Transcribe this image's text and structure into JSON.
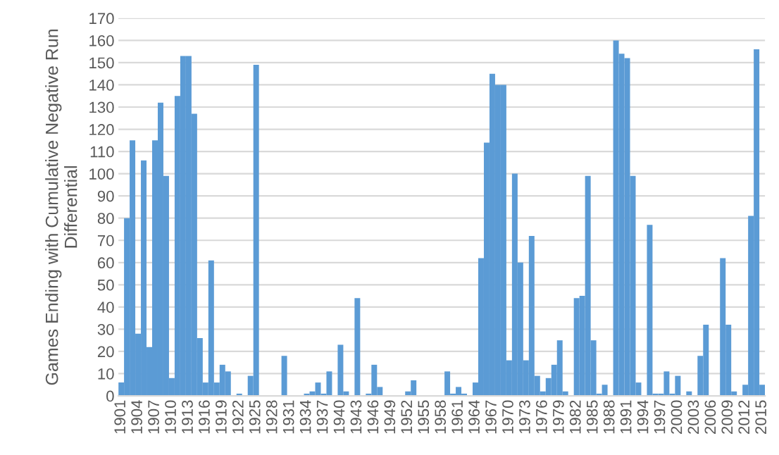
{
  "chart_data": {
    "type": "bar",
    "ylabel": "Games Ending with Cumulative Negative Run Differential",
    "categories": [
      "1901",
      null,
      null,
      "1904",
      null,
      null,
      "1907",
      null,
      null,
      "1910",
      null,
      null,
      "1913",
      null,
      null,
      "1916",
      null,
      null,
      "1919",
      null,
      null,
      "1922",
      null,
      null,
      "1925",
      null,
      null,
      "1928",
      null,
      null,
      "1931",
      null,
      null,
      "1934",
      null,
      null,
      "1937",
      null,
      null,
      "1940",
      null,
      null,
      "1943",
      null,
      null,
      "1946",
      null,
      null,
      "1949",
      null,
      null,
      "1952",
      null,
      null,
      "1955",
      null,
      null,
      "1958",
      null,
      null,
      "1961",
      null,
      null,
      "1964",
      null,
      null,
      "1967",
      null,
      null,
      "1970",
      null,
      null,
      "1973",
      null,
      null,
      "1976",
      null,
      null,
      "1979",
      null,
      null,
      "1982",
      null,
      null,
      "1985",
      null,
      null,
      "1988",
      null,
      null,
      "1991",
      null,
      null,
      "1994",
      null,
      null,
      "1997",
      null,
      null,
      "2000",
      null,
      null,
      "2003",
      null,
      null,
      "2006",
      null,
      null,
      "2009",
      null,
      null,
      "2012",
      null,
      null,
      "2015"
    ],
    "values": [
      6,
      80,
      115,
      28,
      106,
      22,
      115,
      132,
      99,
      8,
      135,
      153,
      153,
      127,
      26,
      6,
      61,
      6,
      14,
      11,
      0,
      1,
      0,
      9,
      149,
      0,
      0,
      0,
      0,
      18,
      0,
      0,
      0,
      1,
      2,
      6,
      1,
      11,
      0,
      23,
      2,
      0,
      44,
      0,
      1,
      14,
      4,
      0,
      0,
      0,
      0,
      2,
      7,
      0,
      0,
      0,
      0,
      0,
      11,
      1,
      4,
      1,
      0,
      6,
      62,
      114,
      145,
      140,
      140,
      16,
      100,
      60,
      16,
      72,
      9,
      2,
      8,
      14,
      25,
      2,
      0,
      44,
      45,
      99,
      25,
      1,
      5,
      0,
      160,
      154,
      152,
      99,
      6,
      0,
      77,
      1,
      1,
      11,
      1,
      9,
      0,
      2,
      0,
      18,
      32,
      0,
      0,
      62,
      32,
      2,
      0,
      5,
      81,
      156,
      5
    ],
    "color": "#5b9bd5",
    "ylim": [
      0,
      170
    ],
    "yticks": [
      0,
      10,
      20,
      30,
      40,
      50,
      60,
      70,
      80,
      90,
      100,
      110,
      120,
      130,
      140,
      150,
      160,
      170
    ],
    "grid": "y",
    "legend": false
  }
}
